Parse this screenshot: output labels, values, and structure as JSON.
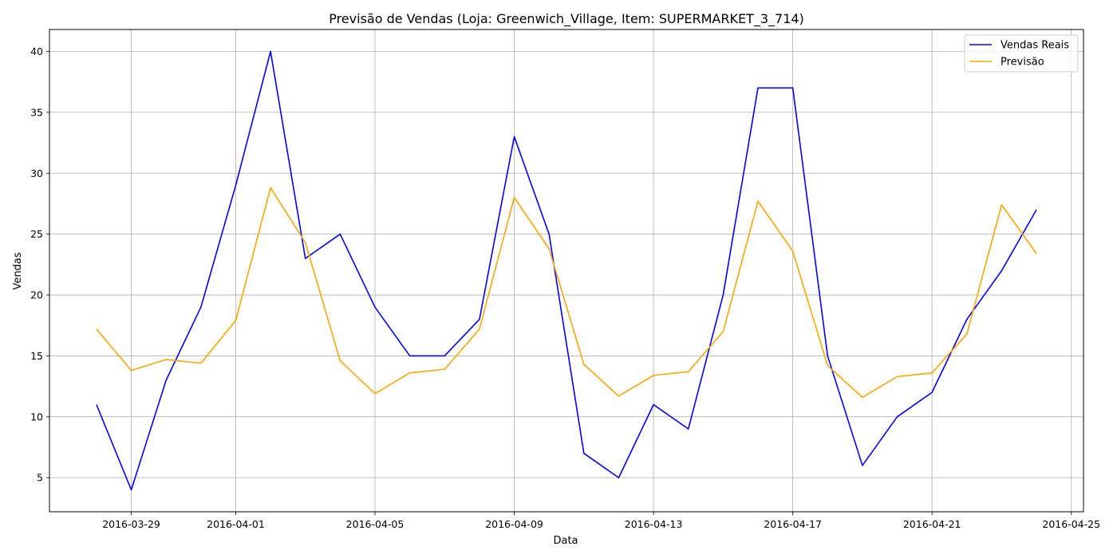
{
  "chart_data": {
    "type": "line",
    "title": "Previsão de Vendas (Loja: Greenwich_Village, Item: SUPERMARKET_3_714)",
    "xlabel": "Data",
    "ylabel": "Vendas",
    "x": [
      "2016-03-28",
      "2016-03-29",
      "2016-03-30",
      "2016-03-31",
      "2016-04-01",
      "2016-04-02",
      "2016-04-03",
      "2016-04-04",
      "2016-04-05",
      "2016-04-06",
      "2016-04-07",
      "2016-04-08",
      "2016-04-09",
      "2016-04-10",
      "2016-04-11",
      "2016-04-12",
      "2016-04-13",
      "2016-04-14",
      "2016-04-15",
      "2016-04-16",
      "2016-04-17",
      "2016-04-18",
      "2016-04-19",
      "2016-04-20",
      "2016-04-21",
      "2016-04-22",
      "2016-04-23",
      "2016-04-24"
    ],
    "series": [
      {
        "name": "Vendas Reais",
        "color": "#0000ff",
        "values": [
          11,
          4,
          13,
          19,
          29,
          40,
          23,
          25,
          19,
          15,
          15,
          18,
          33,
          25,
          7,
          5,
          11,
          9,
          20,
          37,
          37,
          15,
          6,
          10,
          12,
          18,
          22,
          27
        ]
      },
      {
        "name": "Previsão",
        "color": "#ffa500",
        "values": [
          17.2,
          13.8,
          14.7,
          14.4,
          17.9,
          28.8,
          24.3,
          14.6,
          11.9,
          13.6,
          13.9,
          17.2,
          28.0,
          23.8,
          14.3,
          11.7,
          13.4,
          13.7,
          17.0,
          27.7,
          23.6,
          14.2,
          11.6,
          13.3,
          13.6,
          16.8,
          27.4,
          23.4
        ]
      }
    ],
    "xlim": [
      "2016-03-26.65",
      "2016-04-25.35"
    ],
    "ylim": [
      2.2,
      41.8
    ],
    "xticks": [
      "2016-03-29",
      "2016-04-01",
      "2016-04-05",
      "2016-04-09",
      "2016-04-13",
      "2016-04-17",
      "2016-04-21",
      "2016-04-25"
    ],
    "yticks": [
      5,
      10,
      15,
      20,
      25,
      30,
      35,
      40
    ],
    "grid": true,
    "legend_position": "top-right"
  }
}
